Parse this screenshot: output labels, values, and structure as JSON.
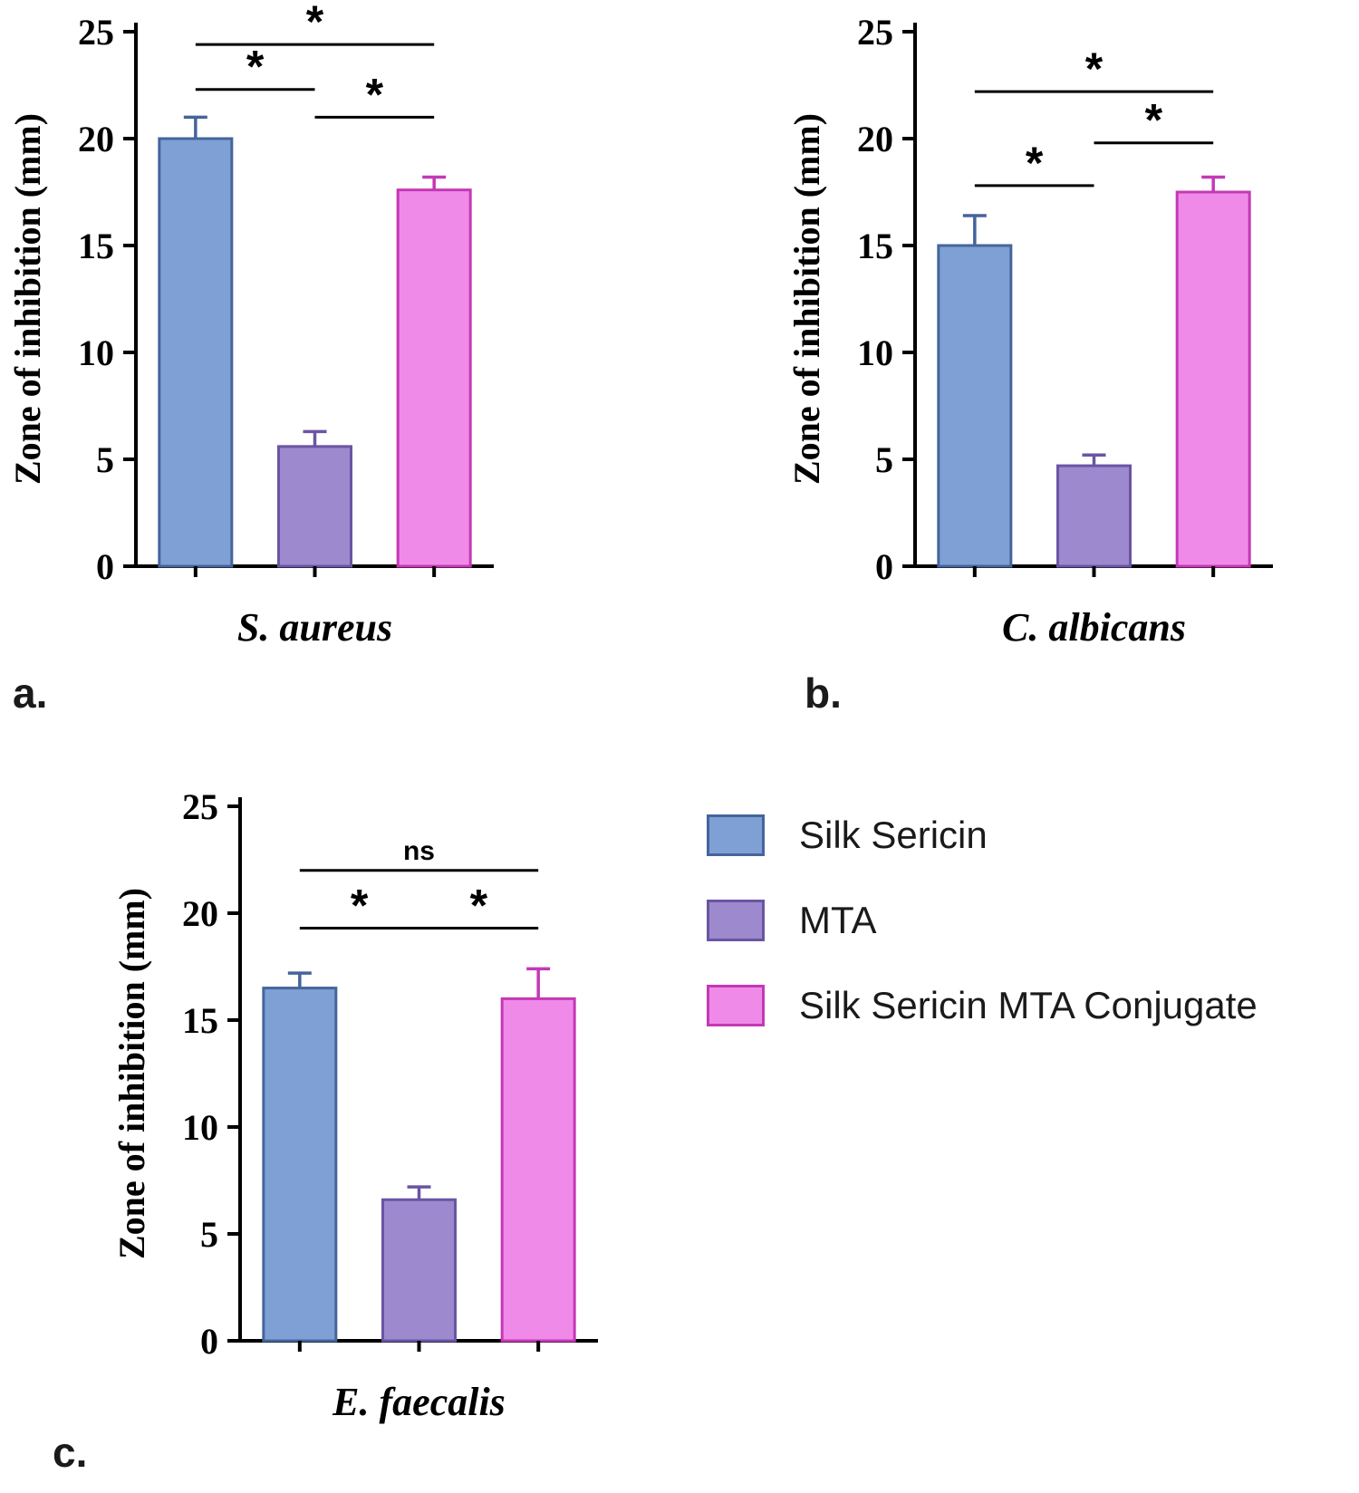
{
  "figure": {
    "background": "#ffffff"
  },
  "panels": [
    {
      "label": "a."
    },
    {
      "label": "b."
    },
    {
      "label": "c."
    }
  ],
  "legend": {
    "items": [
      {
        "label": "Silk Sericin",
        "fill": "#7EA0D5",
        "stroke": "#45649B"
      },
      {
        "label": "MTA",
        "fill": "#9D89CD",
        "stroke": "#6A55A4"
      },
      {
        "label": "Silk Sericin MTA Conjugate",
        "fill": "#F08AE8",
        "stroke": "#C438B6"
      }
    ]
  },
  "chart_data": [
    {
      "type": "bar",
      "panel": "a",
      "category": "S. aureus",
      "ylabel": "Zone of inhibition (mm)",
      "ylim": [
        0,
        25
      ],
      "yticks": [
        0,
        5,
        10,
        15,
        20,
        25
      ],
      "series": [
        {
          "name": "Silk Sericin",
          "value": 20.0,
          "error": 1.0
        },
        {
          "name": "MTA",
          "value": 5.6,
          "error": 0.7
        },
        {
          "name": "Silk Sericin MTA Conjugate",
          "value": 17.6,
          "error": 0.6
        }
      ],
      "significance": [
        {
          "from": 1,
          "to": 2,
          "label": "*",
          "y": 21.0
        },
        {
          "from": 0,
          "to": 1,
          "label": "*",
          "y": 22.3
        },
        {
          "from": 0,
          "to": 2,
          "label": "*",
          "y": 24.4
        }
      ]
    },
    {
      "type": "bar",
      "panel": "b",
      "category": "C. albicans",
      "ylabel": "Zone of inhibition (mm)",
      "ylim": [
        0,
        25
      ],
      "yticks": [
        0,
        5,
        10,
        15,
        20,
        25
      ],
      "series": [
        {
          "name": "Silk Sericin",
          "value": 15.0,
          "error": 1.4
        },
        {
          "name": "MTA",
          "value": 4.7,
          "error": 0.5
        },
        {
          "name": "Silk Sericin MTA Conjugate",
          "value": 17.5,
          "error": 0.7
        }
      ],
      "significance": [
        {
          "from": 0,
          "to": 1,
          "label": "*",
          "y": 17.8
        },
        {
          "from": 1,
          "to": 2,
          "label": "*",
          "y": 19.8
        },
        {
          "from": 0,
          "to": 2,
          "label": "*",
          "y": 22.2
        }
      ]
    },
    {
      "type": "bar",
      "panel": "c",
      "category": "E. faecalis",
      "ylabel": "Zone of inhibition (mm)",
      "ylim": [
        0,
        25
      ],
      "yticks": [
        0,
        5,
        10,
        15,
        20,
        25
      ],
      "series": [
        {
          "name": "Silk Sericin",
          "value": 16.5,
          "error": 0.7
        },
        {
          "name": "MTA",
          "value": 6.6,
          "error": 0.6
        },
        {
          "name": "Silk Sericin MTA Conjugate",
          "value": 16.0,
          "error": 1.4
        }
      ],
      "significance": [
        {
          "from": 0,
          "to": 1,
          "label": "*",
          "y": 19.3
        },
        {
          "from": 1,
          "to": 2,
          "label": "*",
          "y": 19.3
        },
        {
          "from": 0,
          "to": 2,
          "label": "ns",
          "y": 22.0
        }
      ]
    }
  ]
}
